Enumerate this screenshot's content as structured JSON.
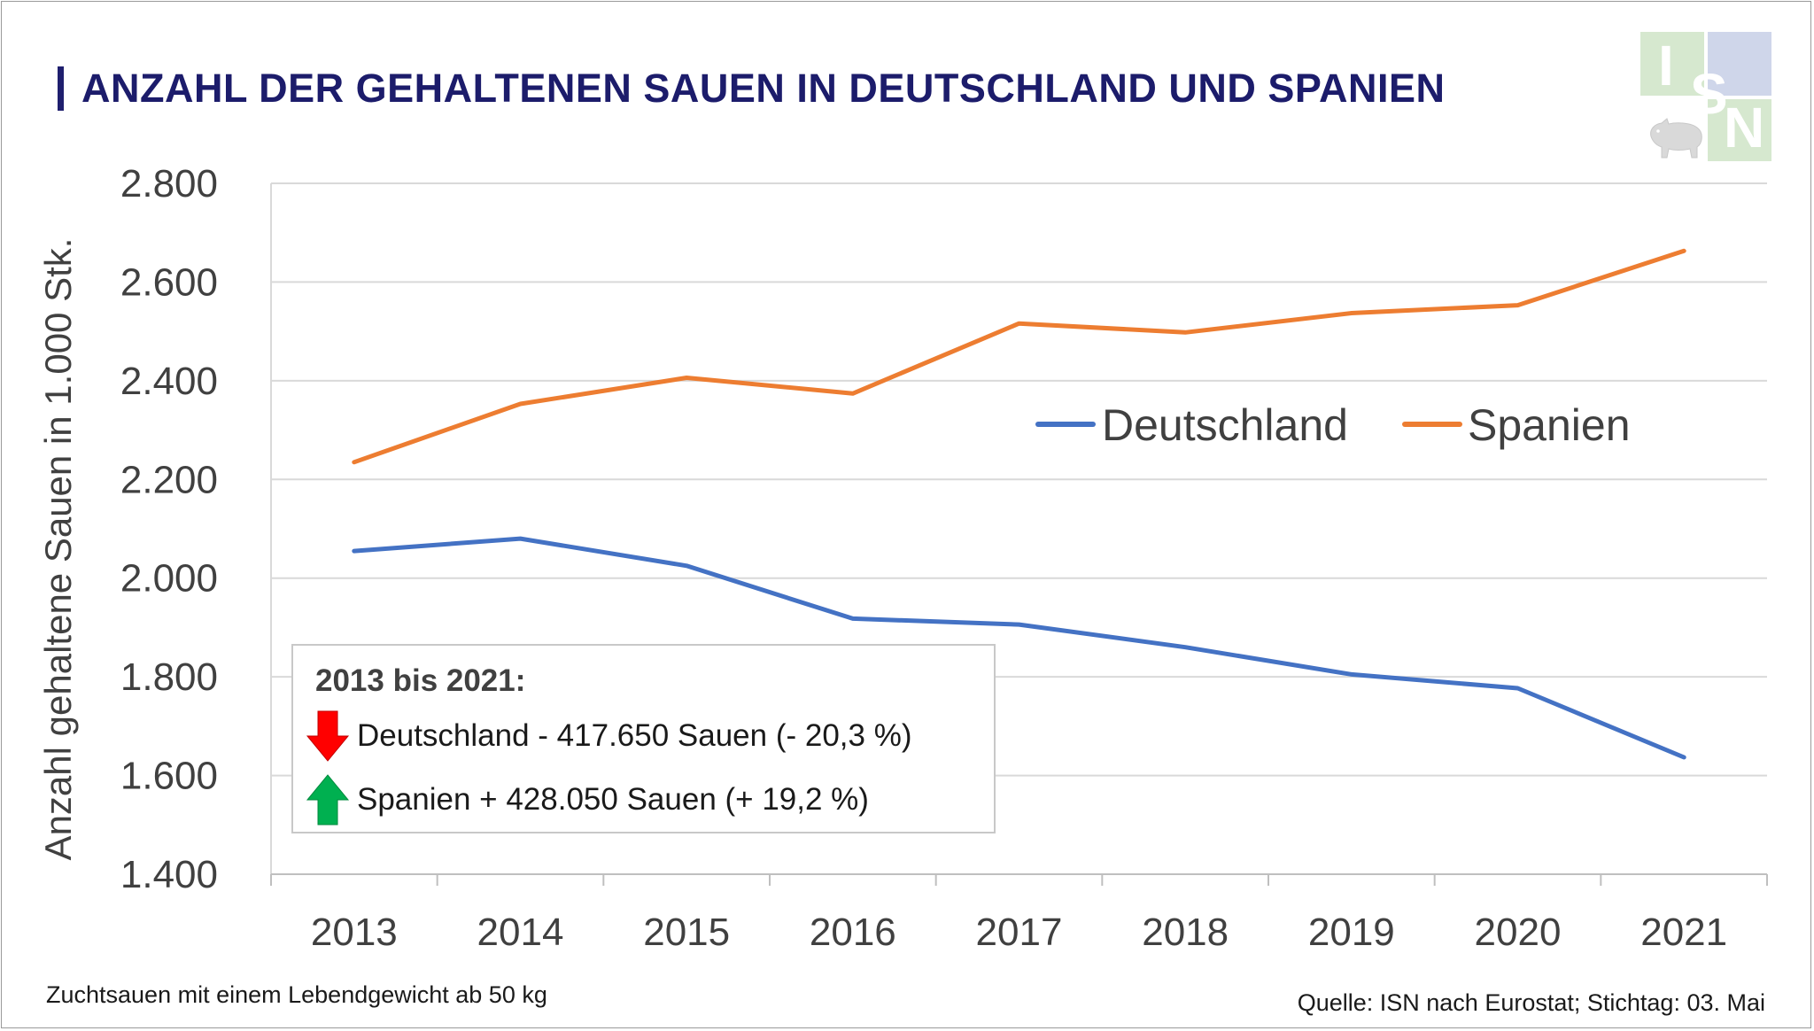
{
  "title": "ANZAHL DER GEHALTENEN SAUEN IN DEUTSCHLAND UND SPANIEN",
  "logo": {
    "text": "ISN",
    "icon": "pig-icon"
  },
  "chart_data": {
    "type": "line",
    "ylabel": "Anzahl gehaltene Sauen in 1.000 Stk.",
    "xlabel": "",
    "ylim": [
      1400,
      2800
    ],
    "yticks": [
      "2.800",
      "2.600",
      "2.400",
      "2.200",
      "2.000",
      "1.800",
      "1.600",
      "1.400"
    ],
    "ytick_values": [
      2800,
      2600,
      2400,
      2200,
      2000,
      1800,
      1600,
      1400
    ],
    "categories": [
      "2013",
      "2014",
      "2015",
      "2016",
      "2017",
      "2018",
      "2019",
      "2020",
      "2021"
    ],
    "grid": true,
    "legend_position": "right-middle",
    "series": [
      {
        "name": "Deutschland",
        "color": "#4472c4",
        "values": [
          2055,
          2080,
          2025,
          1918,
          1906,
          1860,
          1805,
          1777,
          1637
        ]
      },
      {
        "name": "Spanien",
        "color": "#ed7d31",
        "values": [
          2235,
          2353,
          2406,
          2374,
          2516,
          2498,
          2537,
          2553,
          2663
        ]
      }
    ]
  },
  "infobox": {
    "heading": "2013 bis 2021:",
    "rows": [
      {
        "text": "Deutschland - 417.650 Sauen (- 20,3 %)",
        "icon": "arrow-down-icon",
        "color": "#ff0000"
      },
      {
        "text": "Spanien + 428.050 Sauen (+ 19,2 %)",
        "icon": "arrow-up-icon",
        "color": "#00b050"
      }
    ]
  },
  "footnote": "Zuchtsauen mit einem Lebendgewicht ab 50 kg",
  "source": "Quelle: ISN nach Eurostat; Stichtag: 03. Mai"
}
